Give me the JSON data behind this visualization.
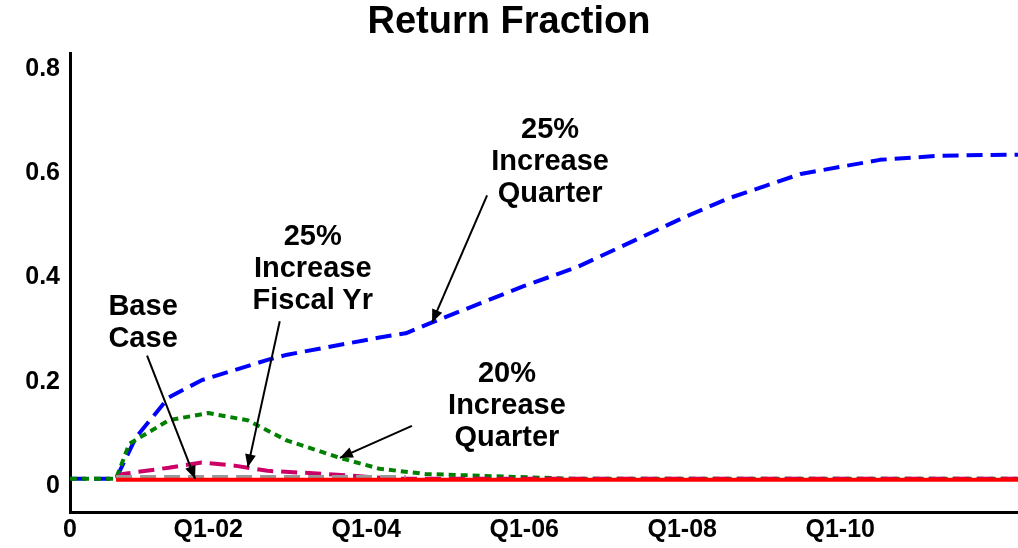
{
  "chart_data": {
    "type": "line",
    "title": "Return Fraction",
    "xlim": [
      "2000-04",
      "2012-04"
    ],
    "xticks": [
      {
        "value": "2000-04",
        "label": "0"
      },
      {
        "value": "2002-01",
        "label": "Q1-02"
      },
      {
        "value": "2004-01",
        "label": "Q1-04"
      },
      {
        "value": "2006-01",
        "label": "Q1-06"
      },
      {
        "value": "2008-01",
        "label": "Q1-08"
      },
      {
        "value": "2010-01",
        "label": "Q1-10"
      }
    ],
    "ylim": [
      -0.05,
      0.83
    ],
    "yticks": [
      0,
      0.2,
      0.4,
      0.6,
      0.8
    ],
    "grid": false,
    "legend": false,
    "marker": "none",
    "series": [
      {
        "color": "#ff0000",
        "line_style": "solid",
        "x": [
          "2000-11",
          "2012-04"
        ],
        "values": [
          0.012,
          0.012
        ]
      },
      {
        "color": "#999999",
        "line_style": "dashed",
        "x": [
          "2000-11",
          "2004-07"
        ],
        "values": [
          0.017,
          0.017
        ]
      },
      {
        "color": "#cc0066",
        "line_style": "dashed",
        "x": [
          "2000-11",
          "2000-12",
          "2001-07",
          "2001-12",
          "2002-05",
          "2002-10",
          "2003-07",
          "2004-05",
          "2012-04"
        ],
        "values": [
          0.014,
          0.023,
          0.035,
          0.045,
          0.039,
          0.029,
          0.023,
          0.014,
          0.014
        ]
      },
      {
        "color": "#008000",
        "line_style": "dotted",
        "x": [
          "2000-04",
          "2000-11",
          "2001-01",
          "2001-07",
          "2002-01",
          "2002-07",
          "2003-01",
          "2003-09",
          "2004-03",
          "2004-10",
          "2005-10",
          "2006-08",
          "2012-04"
        ],
        "values": [
          0.014,
          0.014,
          0.081,
          0.126,
          0.14,
          0.126,
          0.087,
          0.054,
          0.033,
          0.023,
          0.018,
          0.014,
          0.014
        ]
      },
      {
        "color": "#0000ff",
        "line_style": "dashed",
        "x": [
          "2000-04",
          "2000-11",
          "2001-02",
          "2001-07",
          "2001-12",
          "2002-10",
          "2003-01",
          "2004-03",
          "2004-07",
          "2004-11",
          "2006-01",
          "2006-09",
          "2008-01",
          "2008-08",
          "2009-07",
          "2010-07",
          "2011-04",
          "2012-04"
        ],
        "values": [
          0.014,
          0.014,
          0.093,
          0.17,
          0.203,
          0.242,
          0.252,
          0.285,
          0.293,
          0.314,
          0.384,
          0.42,
          0.514,
          0.552,
          0.599,
          0.626,
          0.634,
          0.636
        ]
      }
    ],
    "annotations": [
      {
        "text": "25%\nIncrease\nQuarter",
        "x": "2004-11",
        "y": 0.314
      },
      {
        "text": "25%\nIncrease\nFiscal Yr",
        "x": "2002-07",
        "y": 0.036
      },
      {
        "text": "Base\nCase",
        "x": "2001-11",
        "y": 0.014
      },
      {
        "text": "20%\nIncrease\nQuarter",
        "x": "2003-09",
        "y": 0.054
      }
    ]
  }
}
